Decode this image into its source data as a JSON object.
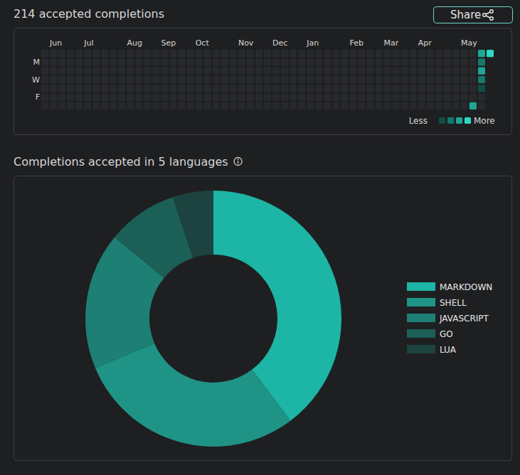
{
  "header": {
    "share_button": "Share"
  },
  "chart_data": [
    {
      "type": "heatmap",
      "title": "214 accepted completions",
      "categories": [
        null,
        "Jun",
        null,
        null,
        null,
        "Jul",
        null,
        null,
        null,
        null,
        "Aug",
        null,
        null,
        null,
        "Sep",
        null,
        null,
        null,
        "Oct",
        null,
        null,
        null,
        null,
        "Nov",
        null,
        null,
        null,
        "Dec",
        null,
        null,
        null,
        "Jan",
        null,
        null,
        null,
        null,
        "Feb",
        null,
        null,
        null,
        "Mar",
        null,
        null,
        null,
        "Apr",
        null,
        null,
        null,
        null,
        "May",
        null,
        null,
        null
      ],
      "rows": [
        null,
        "M",
        null,
        "W",
        null,
        "F",
        null
      ],
      "values": [
        [
          0,
          0,
          0,
          0,
          0,
          0,
          0,
          0,
          0,
          0,
          0,
          0,
          0,
          0,
          0,
          0,
          0,
          0,
          0,
          0,
          0,
          0,
          0,
          0,
          0,
          0,
          0,
          0,
          0,
          0,
          0,
          0,
          0,
          0,
          0,
          0,
          0,
          0,
          0,
          0,
          0,
          0,
          0,
          0,
          0,
          0,
          0,
          0,
          0,
          0,
          0,
          35,
          62
        ],
        [
          0,
          0,
          0,
          0,
          0,
          0,
          0,
          0,
          0,
          0,
          0,
          0,
          0,
          0,
          0,
          0,
          0,
          0,
          0,
          0,
          0,
          0,
          0,
          0,
          0,
          0,
          0,
          0,
          0,
          0,
          0,
          0,
          0,
          0,
          0,
          0,
          0,
          0,
          0,
          0,
          0,
          0,
          0,
          0,
          0,
          0,
          0,
          0,
          0,
          0,
          0,
          24,
          null
        ],
        [
          0,
          0,
          0,
          0,
          0,
          0,
          0,
          0,
          0,
          0,
          0,
          0,
          0,
          0,
          0,
          0,
          0,
          0,
          0,
          0,
          0,
          0,
          0,
          0,
          0,
          0,
          0,
          0,
          0,
          0,
          0,
          0,
          0,
          0,
          0,
          0,
          0,
          0,
          0,
          0,
          0,
          0,
          0,
          0,
          0,
          0,
          0,
          0,
          0,
          0,
          0,
          31,
          null
        ],
        [
          0,
          0,
          0,
          0,
          0,
          0,
          0,
          0,
          0,
          0,
          0,
          0,
          0,
          0,
          0,
          0,
          0,
          0,
          0,
          0,
          0,
          0,
          0,
          0,
          0,
          0,
          0,
          0,
          0,
          0,
          0,
          0,
          0,
          0,
          0,
          0,
          0,
          0,
          0,
          0,
          0,
          0,
          0,
          0,
          0,
          0,
          0,
          0,
          0,
          0,
          0,
          22,
          null
        ],
        [
          0,
          0,
          0,
          0,
          0,
          0,
          0,
          0,
          0,
          0,
          0,
          0,
          0,
          0,
          0,
          0,
          0,
          0,
          0,
          0,
          0,
          0,
          0,
          0,
          0,
          0,
          0,
          0,
          0,
          0,
          0,
          0,
          0,
          0,
          0,
          0,
          0,
          0,
          0,
          0,
          0,
          0,
          0,
          0,
          0,
          0,
          0,
          0,
          0,
          0,
          0,
          8,
          null
        ],
        [
          0,
          0,
          0,
          0,
          0,
          0,
          0,
          0,
          0,
          0,
          0,
          0,
          0,
          0,
          0,
          0,
          0,
          0,
          0,
          0,
          0,
          0,
          0,
          0,
          0,
          0,
          0,
          0,
          0,
          0,
          0,
          0,
          0,
          0,
          0,
          0,
          0,
          0,
          0,
          0,
          0,
          0,
          0,
          0,
          0,
          0,
          0,
          0,
          0,
          0,
          0,
          0,
          null
        ],
        [
          0,
          0,
          0,
          0,
          0,
          0,
          0,
          0,
          0,
          0,
          0,
          0,
          0,
          0,
          0,
          0,
          0,
          0,
          0,
          0,
          0,
          0,
          0,
          0,
          0,
          0,
          0,
          0,
          0,
          0,
          0,
          0,
          0,
          0,
          0,
          0,
          0,
          0,
          0,
          0,
          0,
          0,
          0,
          0,
          0,
          0,
          0,
          0,
          0,
          0,
          32,
          0,
          null
        ]
      ],
      "levels": [
        1,
        15,
        30,
        50
      ],
      "colors": [
        "#0f4d45",
        "#15796d",
        "#1ea796",
        "#2dd9c4"
      ],
      "legend_labels": [
        "Less",
        "More"
      ],
      "legend": "bottom-right"
    },
    {
      "type": "pie",
      "title": "Completions accepted in 5 languages",
      "categories": [
        "MARKDOWN",
        "SHELL",
        "JAVASCRIPT",
        "GO",
        "LUA"
      ],
      "values": [
        85,
        62,
        37,
        19,
        11
      ],
      "colors": [
        "#1db5a5",
        "#1f9486",
        "#1e7f74",
        "#1c5f57",
        "#1c433f"
      ],
      "legend": "right"
    }
  ]
}
